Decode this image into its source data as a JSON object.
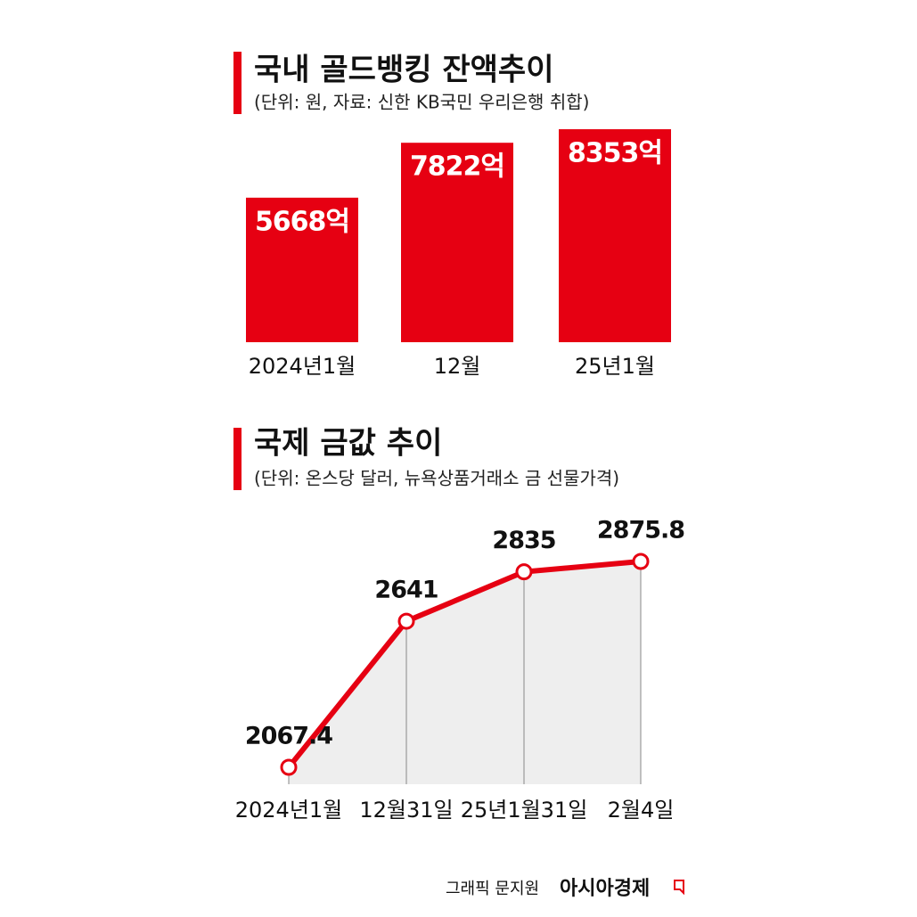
{
  "chart_data": [
    {
      "type": "bar",
      "title": "국내 골드뱅킹 잔액추이",
      "subtitle": "(단위: 원, 자료: 신한 KB국민 우리은행 취합)",
      "categories": [
        "2024년1월",
        "12월",
        "25년1월"
      ],
      "values": [
        5668,
        7822,
        8353
      ],
      "value_labels": [
        "5668억",
        "7822억",
        "8353억"
      ],
      "color": "#e60012"
    },
    {
      "type": "line",
      "title": "국제 금값 추이",
      "subtitle": "(단위: 온스당 달러, 뉴욕상품거래소 금 선물가격)",
      "categories": [
        "2024년1월",
        "12월31일",
        "25년1월31일",
        "2월4일"
      ],
      "values": [
        2067.4,
        2641,
        2835,
        2875.8
      ],
      "color": "#e60012",
      "area_color": "#eeeeee"
    }
  ],
  "credit": "그래픽 문지원",
  "brand": "아시아경제"
}
